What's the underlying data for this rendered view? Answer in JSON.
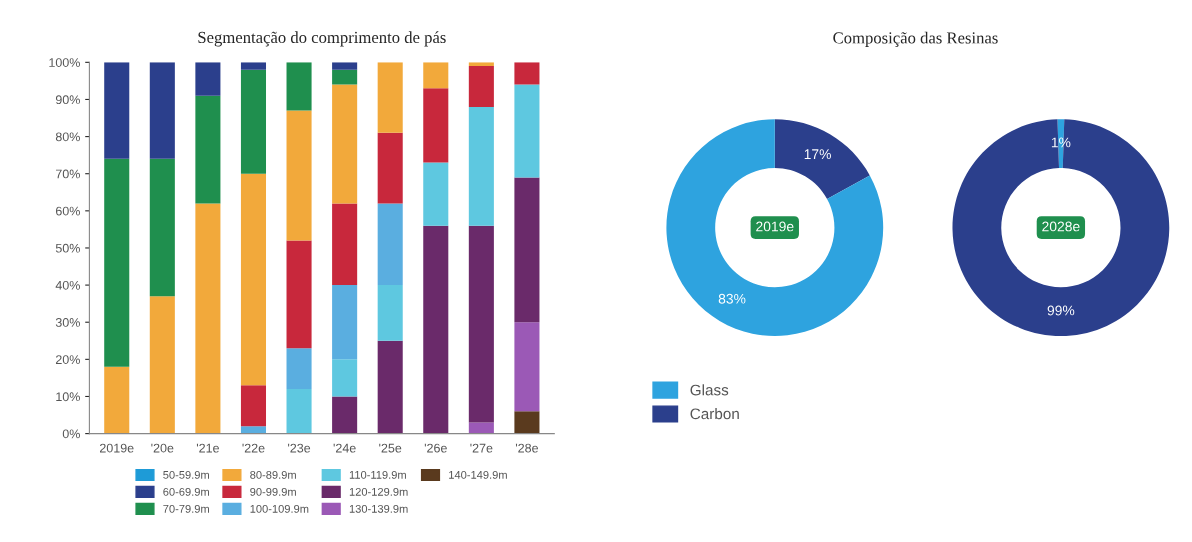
{
  "chart_data": [
    {
      "type": "bar",
      "stacked": true,
      "title": "Segmentação do comprimento de pás",
      "categories": [
        "2019e",
        "'20e",
        "'21e",
        "'22e",
        "'23e",
        "'24e",
        "'25e",
        "'26e",
        "'27e",
        "'28e"
      ],
      "series": [
        {
          "name": "140-149.9m",
          "color": "#5a3a1e",
          "values": [
            null,
            null,
            null,
            null,
            null,
            null,
            null,
            null,
            null,
            6
          ]
        },
        {
          "name": "130-139.9m",
          "color": "#9b59b6",
          "values": [
            null,
            null,
            null,
            null,
            null,
            null,
            null,
            null,
            3,
            24
          ]
        },
        {
          "name": "120-129.9m",
          "color": "#6a2a6a",
          "values": [
            null,
            null,
            null,
            null,
            null,
            10,
            25,
            56,
            53,
            39
          ]
        },
        {
          "name": "110-119.9m",
          "color": "#5ec8e0",
          "values": [
            null,
            null,
            null,
            null,
            12,
            10,
            15,
            17,
            32,
            25
          ]
        },
        {
          "name": "100-109.9m",
          "color": "#5aaee0",
          "values": [
            null,
            null,
            null,
            2,
            11,
            20,
            22,
            null,
            null,
            null
          ]
        },
        {
          "name": "90-99.9m",
          "color": "#c8283c",
          "values": [
            null,
            null,
            null,
            11,
            29,
            22,
            19,
            20,
            11,
            6
          ]
        },
        {
          "name": "80-89.9m",
          "color": "#f2a93b",
          "values": [
            18,
            37,
            62,
            57,
            35,
            32,
            19,
            7,
            1,
            null
          ]
        },
        {
          "name": "70-79.9m",
          "color": "#1f8f4e",
          "values": [
            56,
            37,
            29,
            28,
            13,
            4,
            null,
            null,
            null,
            null
          ]
        },
        {
          "name": "60-69.9m",
          "color": "#2b3f8c",
          "values": [
            26,
            26,
            9,
            2,
            null,
            2,
            null,
            null,
            null,
            null
          ]
        },
        {
          "name": "50-59.9m",
          "color": "#1e9bd7",
          "values": [
            null,
            null,
            null,
            null,
            null,
            null,
            null,
            null,
            null,
            null
          ]
        }
      ],
      "ylim": [
        0,
        100
      ],
      "yticks": [
        {
          "value": 0,
          "label": "0%"
        },
        {
          "value": 10,
          "label": "10%"
        },
        {
          "value": 20,
          "label": "20%"
        },
        {
          "value": 30,
          "label": "30%"
        },
        {
          "value": 40,
          "label": "40%"
        },
        {
          "value": 50,
          "label": "50%"
        },
        {
          "value": 60,
          "label": "60%"
        },
        {
          "value": 70,
          "label": "70%"
        },
        {
          "value": 80,
          "label": "80%"
        },
        {
          "value": 90,
          "label": "90%"
        },
        {
          "value": 100,
          "label": "100%"
        }
      ],
      "legend": "bottom",
      "grid": false
    },
    {
      "type": "donut",
      "title": "Composição das Resinas",
      "categories": [
        "Carbon",
        "Glass"
      ],
      "values": [
        17,
        83
      ],
      "colors": [
        "#2b3f8c",
        "#2ea3df"
      ],
      "value_labels": [
        "17%",
        "83%"
      ],
      "annotations": [
        "2019e"
      ],
      "legend": "bottom left"
    },
    {
      "type": "donut",
      "categories": [
        null,
        null
      ],
      "values": [
        1,
        99
      ],
      "colors": [
        "#2ea3df",
        "#2b3f8c"
      ],
      "value_labels": [
        "1%",
        "99%"
      ],
      "annotations": [
        "2028e"
      ]
    }
  ]
}
